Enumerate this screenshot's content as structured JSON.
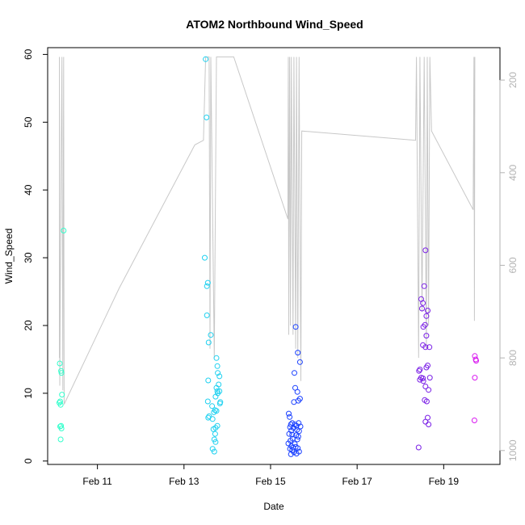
{
  "chart_data": {
    "type": "scatter",
    "title": "ATOM2 Northbound Wind_Speed",
    "xlabel": "Date",
    "ylabel": "Wind_Speed",
    "x_unit": "days since Feb 9 00:00",
    "xlim": [
      9.9,
      11.9
    ],
    "ylim": [
      -0.5,
      61
    ],
    "x_ticks": [
      {
        "v": 11,
        "label": "Feb 11"
      },
      {
        "v": 13,
        "label": "Feb 13"
      },
      {
        "v": 15,
        "label": "Feb 15"
      },
      {
        "v": 17,
        "label": "Feb 17"
      },
      {
        "v": 19,
        "label": "Feb 19"
      }
    ],
    "y_ticks": [
      0,
      10,
      20,
      30,
      40,
      50,
      60
    ],
    "right_axis": {
      "ylim_reversed": [
        1030,
        130
      ],
      "ticks": [
        200,
        400,
        600,
        800,
        1000
      ],
      "color": "#b3b3b3"
    },
    "grid": false,
    "legend": "none",
    "series": [
      {
        "color": "#33ffcc",
        "points": [
          [
            10.22,
            34
          ],
          [
            10.13,
            14.4
          ],
          [
            10.16,
            13.3
          ],
          [
            10.17,
            13
          ],
          [
            10.18,
            9.8
          ],
          [
            10.14,
            8.8
          ],
          [
            10.12,
            8.6
          ],
          [
            10.15,
            8.3
          ],
          [
            10.16,
            5.2
          ],
          [
            10.14,
            5.1
          ],
          [
            10.17,
            4.8
          ],
          [
            10.15,
            3.2
          ]
        ]
      },
      {
        "color": "#1fd1f0",
        "points": [
          [
            13.5,
            59.3
          ],
          [
            13.52,
            50.7
          ],
          [
            13.48,
            30
          ],
          [
            13.55,
            26.3
          ],
          [
            13.53,
            25.8
          ],
          [
            13.53,
            21.5
          ],
          [
            13.62,
            18.6
          ],
          [
            13.57,
            17.5
          ],
          [
            13.75,
            15.2
          ],
          [
            13.77,
            14
          ],
          [
            13.78,
            13
          ],
          [
            13.82,
            12.5
          ],
          [
            13.56,
            11.9
          ],
          [
            13.8,
            11.3
          ],
          [
            13.75,
            10.8
          ],
          [
            13.77,
            10.3
          ],
          [
            13.82,
            10.3
          ],
          [
            13.78,
            10
          ],
          [
            13.73,
            9.5
          ],
          [
            13.55,
            8.8
          ],
          [
            13.84,
            8.7
          ],
          [
            13.83,
            8.5
          ],
          [
            13.65,
            8.1
          ],
          [
            13.72,
            7.5
          ],
          [
            13.75,
            7.4
          ],
          [
            13.69,
            7.2
          ],
          [
            13.58,
            6.6
          ],
          [
            13.56,
            6.4
          ],
          [
            13.66,
            6.2
          ],
          [
            13.77,
            5.2
          ],
          [
            13.73,
            4.9
          ],
          [
            13.68,
            4.7
          ],
          [
            13.72,
            4
          ],
          [
            13.7,
            3.2
          ],
          [
            13.73,
            2.8
          ],
          [
            13.66,
            1.8
          ],
          [
            13.7,
            1.4
          ]
        ]
      },
      {
        "color": "#1a40ff",
        "points": [
          [
            15.58,
            19.8
          ],
          [
            15.63,
            16
          ],
          [
            15.68,
            14.6
          ],
          [
            15.55,
            13
          ],
          [
            15.57,
            10.8
          ],
          [
            15.62,
            10.2
          ],
          [
            15.68,
            9.2
          ],
          [
            15.64,
            8.9
          ],
          [
            15.54,
            8.7
          ],
          [
            15.42,
            7
          ],
          [
            15.44,
            6.5
          ],
          [
            15.5,
            5.6
          ],
          [
            15.65,
            5.6
          ],
          [
            15.47,
            5.4
          ],
          [
            15.56,
            5.4
          ],
          [
            15.6,
            5.2
          ],
          [
            15.69,
            5.1
          ],
          [
            15.45,
            5
          ],
          [
            15.53,
            4.9
          ],
          [
            15.61,
            4.6
          ],
          [
            15.48,
            4.5
          ],
          [
            15.66,
            4.4
          ],
          [
            15.43,
            4
          ],
          [
            15.5,
            3.9
          ],
          [
            15.59,
            3.8
          ],
          [
            15.64,
            3.6
          ],
          [
            15.51,
            3.3
          ],
          [
            15.62,
            3.2
          ],
          [
            15.46,
            3
          ],
          [
            15.56,
            2.5
          ],
          [
            15.41,
            2.6
          ],
          [
            15.48,
            2.2
          ],
          [
            15.52,
            2
          ],
          [
            15.58,
            2.1
          ],
          [
            15.63,
            1.9
          ],
          [
            15.45,
            1.8
          ],
          [
            15.5,
            1.6
          ],
          [
            15.54,
            1.3
          ],
          [
            15.6,
            1.1
          ],
          [
            15.66,
            1.4
          ],
          [
            15.47,
            1
          ]
        ]
      },
      {
        "color": "#7a1fe6",
        "points": [
          [
            18.58,
            31.1
          ],
          [
            18.55,
            25.8
          ],
          [
            18.48,
            23.9
          ],
          [
            18.52,
            23.3
          ],
          [
            18.5,
            22.5
          ],
          [
            18.63,
            22.2
          ],
          [
            18.6,
            21.4
          ],
          [
            18.57,
            20.1
          ],
          [
            18.53,
            19.8
          ],
          [
            18.6,
            18.5
          ],
          [
            18.52,
            17.1
          ],
          [
            18.58,
            16.8
          ],
          [
            18.67,
            16.8
          ],
          [
            18.63,
            14.1
          ],
          [
            18.43,
            13.3
          ],
          [
            18.45,
            13.5
          ],
          [
            18.6,
            13.8
          ],
          [
            18.48,
            12.3
          ],
          [
            18.52,
            12.2
          ],
          [
            18.68,
            12.3
          ],
          [
            18.45,
            12
          ],
          [
            18.53,
            11.8
          ],
          [
            18.58,
            11
          ],
          [
            18.65,
            10.5
          ],
          [
            18.56,
            9
          ],
          [
            18.61,
            8.8
          ],
          [
            18.63,
            6.4
          ],
          [
            18.58,
            5.8
          ],
          [
            18.65,
            5.4
          ],
          [
            18.42,
            2
          ]
        ]
      },
      {
        "color": "#d91af0",
        "points": [
          [
            19.72,
            15.5
          ],
          [
            19.74,
            15
          ],
          [
            19.75,
            14.8
          ],
          [
            19.72,
            12.3
          ],
          [
            19.71,
            6
          ]
        ]
      }
    ],
    "pressure_trace": [
      [
        10.12,
        800
      ],
      [
        10.12,
        150
      ],
      [
        10.13,
        860
      ],
      [
        10.16,
        400
      ],
      [
        10.18,
        150
      ],
      [
        10.2,
        870
      ],
      [
        10.22,
        150
      ],
      [
        10.23,
        900
      ],
      [
        11.5,
        650
      ],
      [
        13.25,
        340
      ],
      [
        13.45,
        330
      ],
      [
        13.5,
        150
      ],
      [
        13.58,
        150
      ],
      [
        13.6,
        780
      ],
      [
        13.62,
        150
      ],
      [
        13.7,
        800
      ],
      [
        13.75,
        150
      ],
      [
        13.8,
        150
      ],
      [
        14.15,
        150
      ],
      [
        15.4,
        500
      ],
      [
        15.41,
        150
      ],
      [
        15.42,
        750
      ],
      [
        15.44,
        150
      ],
      [
        15.46,
        730
      ],
      [
        15.48,
        150
      ],
      [
        15.52,
        750
      ],
      [
        15.54,
        150
      ],
      [
        15.58,
        780
      ],
      [
        15.6,
        150
      ],
      [
        15.63,
        800
      ],
      [
        15.66,
        150
      ],
      [
        15.7,
        850
      ],
      [
        15.72,
        310
      ],
      [
        18.35,
        330
      ],
      [
        18.37,
        150
      ],
      [
        18.42,
        800
      ],
      [
        18.45,
        150
      ],
      [
        18.5,
        700
      ],
      [
        18.55,
        150
      ],
      [
        18.6,
        780
      ],
      [
        18.62,
        150
      ],
      [
        18.65,
        730
      ],
      [
        18.68,
        150
      ],
      [
        18.72,
        310
      ],
      [
        19.68,
        480
      ],
      [
        19.7,
        150
      ],
      [
        19.71,
        720
      ],
      [
        19.72,
        150
      ]
    ]
  }
}
